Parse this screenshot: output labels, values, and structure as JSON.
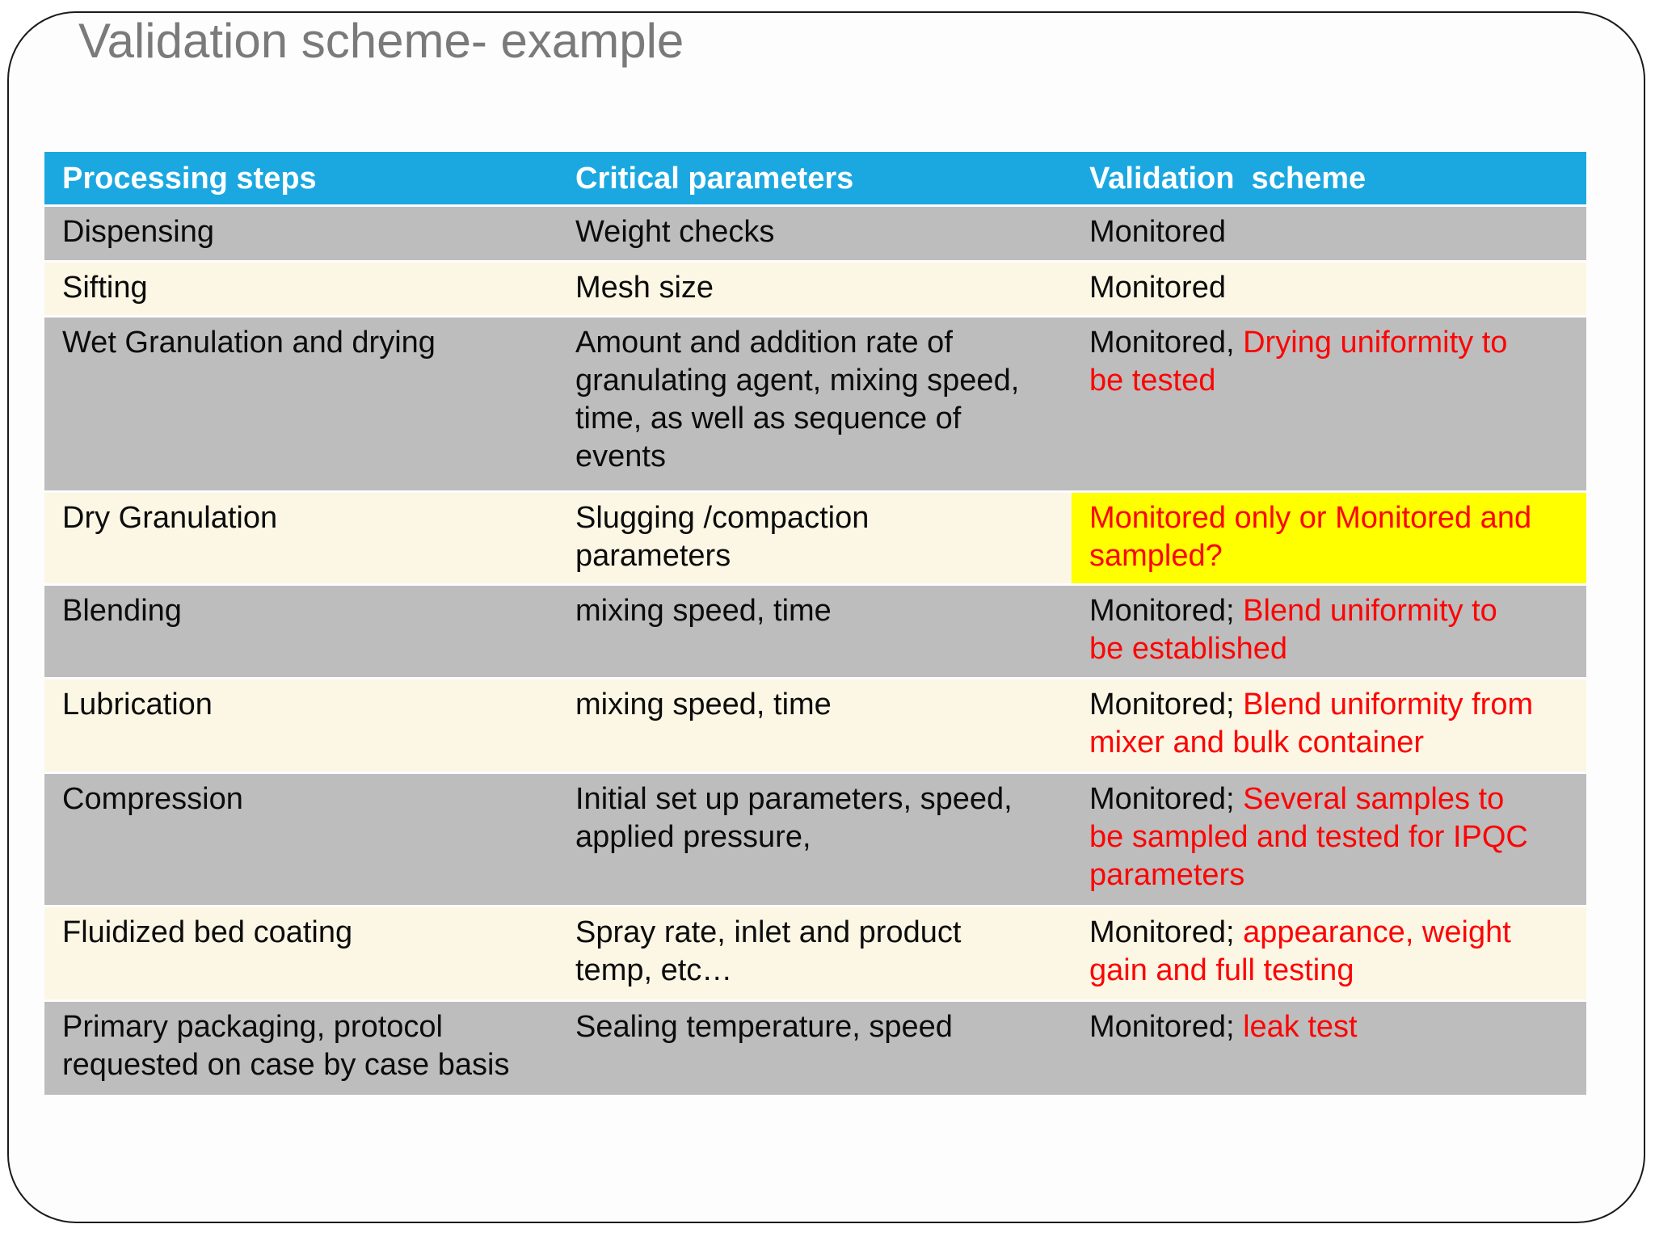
{
  "slide": {
    "title": "Validation scheme- example"
  },
  "table": {
    "headers": [
      "Processing steps",
      "Critical parameters",
      "Validation  scheme"
    ],
    "rows": [
      {
        "step": "Dispensing",
        "params": "Weight checks",
        "validation_plain": "Monitored",
        "validation_red": "",
        "highlight": false
      },
      {
        "step": "Sifting",
        "params": "Mesh size",
        "validation_plain": "Monitored",
        "validation_red": "",
        "highlight": false
      },
      {
        "step": "Wet Granulation and drying",
        "params": "Amount and addition rate of granulating agent, mixing speed, time, as well as sequence of events",
        "validation_plain": "Monitored, ",
        "validation_red": "Drying uniformity to be tested",
        "highlight": false
      },
      {
        "step": "Dry Granulation",
        "params": "Slugging /compaction parameters",
        "validation_plain": "",
        "validation_red": "Monitored only or Monitored and sampled?",
        "highlight": true
      },
      {
        "step": "Blending",
        "params": "mixing speed, time",
        "validation_plain": "Monitored; ",
        "validation_red": "Blend uniformity to be established",
        "highlight": false
      },
      {
        "step": "Lubrication",
        "params": "mixing speed, time",
        "validation_plain": "Monitored; ",
        "validation_red": "Blend uniformity from mixer and bulk container",
        "highlight": false
      },
      {
        "step": "Compression",
        "params": "Initial set up parameters, speed, applied pressure,",
        "validation_plain": "Monitored; ",
        "validation_red": "Several samples to be sampled and tested for IPQC parameters",
        "highlight": false
      },
      {
        "step": "Fluidized bed coating",
        "params": "Spray rate, inlet and product temp, etc…",
        "validation_plain": "Monitored; ",
        "validation_red": "appearance, weight gain and full testing",
        "highlight": false
      },
      {
        "step": "Primary packaging, protocol requested on case by case basis",
        "params": "Sealing temperature, speed",
        "validation_plain": "Monitored; ",
        "validation_red": "leak test",
        "highlight": false
      }
    ]
  },
  "colors": {
    "header_bg": "#1BA8E1",
    "header_text": "#FFFFFF",
    "row_gray": "#BDBDBD",
    "row_cream": "#FCF6E4",
    "highlight_yellow": "#FFFF00",
    "red_text": "#FB0505",
    "body_text": "#0C0C0C",
    "title_gray": "#7A7A7A",
    "slide_border": "#1A1A1A"
  }
}
